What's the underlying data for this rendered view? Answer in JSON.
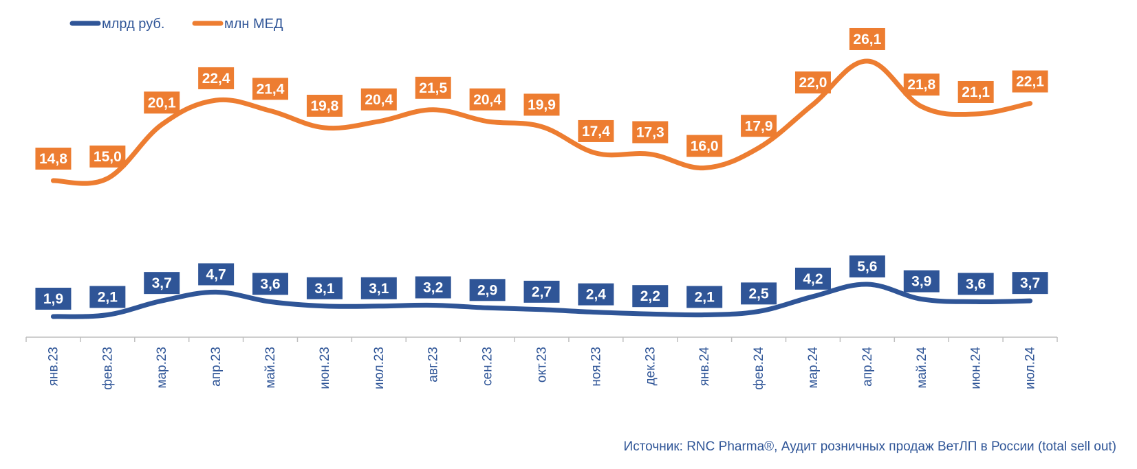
{
  "source_note": "Источник: RNC Pharma®, Аудит розничных продаж ВетЛП в России (total sell out)",
  "chart_data": {
    "type": "line",
    "categories": [
      "янв.23",
      "фев.23",
      "мар.23",
      "апр.23",
      "май.23",
      "июн.23",
      "июл.23",
      "авг.23",
      "сен.23",
      "окт.23",
      "ноя.23",
      "дек.23",
      "янв.24",
      "фев.24",
      "мар.24",
      "апр.24",
      "май.24",
      "июн.24",
      "июл.24"
    ],
    "series": [
      {
        "name": "млрд руб.",
        "color": "#2F5597",
        "labels_text": [
          "1,9",
          "2,1",
          "3,7",
          "4,7",
          "3,6",
          "3,1",
          "3,1",
          "3,2",
          "2,9",
          "2,7",
          "2,4",
          "2,2",
          "2,1",
          "2,5",
          "4,2",
          "5,6",
          "3,9",
          "3,6",
          "3,7"
        ]
      },
      {
        "name": "млн МЕД",
        "color": "#ED7D31",
        "labels_text": [
          "14,8",
          "15,0",
          "20,1",
          "22,4",
          "21,4",
          "19,8",
          "20,4",
          "21,5",
          "20,4",
          "19,9",
          "17,4",
          "17,3",
          "16,0",
          "17,9",
          "22,0",
          "26,1",
          "21,8",
          "21,1",
          "22,1"
        ]
      }
    ],
    "legend_position": "top-left",
    "grid": false,
    "smooth": true
  }
}
